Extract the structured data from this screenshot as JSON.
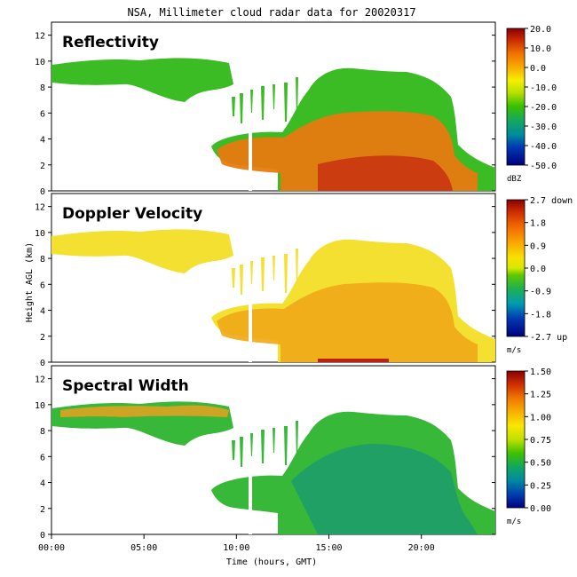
{
  "title": "NSA, Millimeter cloud radar data for 20020317",
  "xlabel": "Time (hours, GMT)",
  "ylabel": "Height AGL (km)",
  "colors": {
    "background": "#ffffff",
    "axis": "#000000"
  },
  "chart_data": [
    {
      "type": "heatmap",
      "title": "Reflectivity",
      "xlim": [
        0,
        24
      ],
      "ylim": [
        0,
        13
      ],
      "x_ticks": [
        "00:00",
        "05:00",
        "10:00",
        "15:00",
        "20:00"
      ],
      "y_ticks": [
        "0",
        "2",
        "4",
        "6",
        "8",
        "10",
        "12"
      ],
      "colorbar": {
        "ticks": [
          "20.0",
          "10.0",
          "0.0",
          "-10.0",
          "-20.0",
          "-30.0",
          "-40.0",
          "-50.0"
        ],
        "unit": "dBZ",
        "range": [
          -50,
          20
        ]
      },
      "cloud_layers": [
        {
          "t_start": 0,
          "t_end": 9.3,
          "base_km": 8.0,
          "top_km": 10.5,
          "typical_value": -22
        },
        {
          "t_start": 8.7,
          "t_end": 24,
          "base_km": 0.0,
          "top_km": 10.0,
          "typical_value": 0
        }
      ]
    },
    {
      "type": "heatmap",
      "title": "Doppler Velocity",
      "xlim": [
        0,
        24
      ],
      "ylim": [
        0,
        13
      ],
      "x_ticks": [
        "00:00",
        "05:00",
        "10:00",
        "15:00",
        "20:00"
      ],
      "y_ticks": [
        "0",
        "2",
        "4",
        "6",
        "8",
        "10",
        "12"
      ],
      "colorbar": {
        "ticks": [
          "2.7 down",
          "1.8",
          "0.9",
          "0.0",
          "-0.9",
          "-1.8",
          "-2.7 up"
        ],
        "unit": "m/s",
        "range": [
          -2.7,
          2.7
        ]
      },
      "cloud_layers": [
        {
          "t_start": 0,
          "t_end": 9.3,
          "base_km": 8.0,
          "top_km": 10.5,
          "typical_value": 0.6
        },
        {
          "t_start": 8.7,
          "t_end": 24,
          "base_km": 0.0,
          "top_km": 10.0,
          "typical_value": 1.0
        }
      ]
    },
    {
      "type": "heatmap",
      "title": "Spectral Width",
      "xlim": [
        0,
        24
      ],
      "ylim": [
        0,
        13
      ],
      "x_ticks": [
        "00:00",
        "05:00",
        "10:00",
        "15:00",
        "20:00"
      ],
      "y_ticks": [
        "0",
        "2",
        "4",
        "6",
        "8",
        "10",
        "12"
      ],
      "colorbar": {
        "ticks": [
          "1.50",
          "1.25",
          "1.00",
          "0.75",
          "0.50",
          "0.25",
          "0.00"
        ],
        "unit": "m/s",
        "range": [
          0,
          1.5
        ]
      },
      "cloud_layers": [
        {
          "t_start": 0,
          "t_end": 9.3,
          "base_km": 8.0,
          "top_km": 10.5,
          "typical_value": 0.55
        },
        {
          "t_start": 8.7,
          "t_end": 24,
          "base_km": 0.0,
          "top_km": 10.0,
          "typical_value": 0.45
        }
      ]
    }
  ]
}
